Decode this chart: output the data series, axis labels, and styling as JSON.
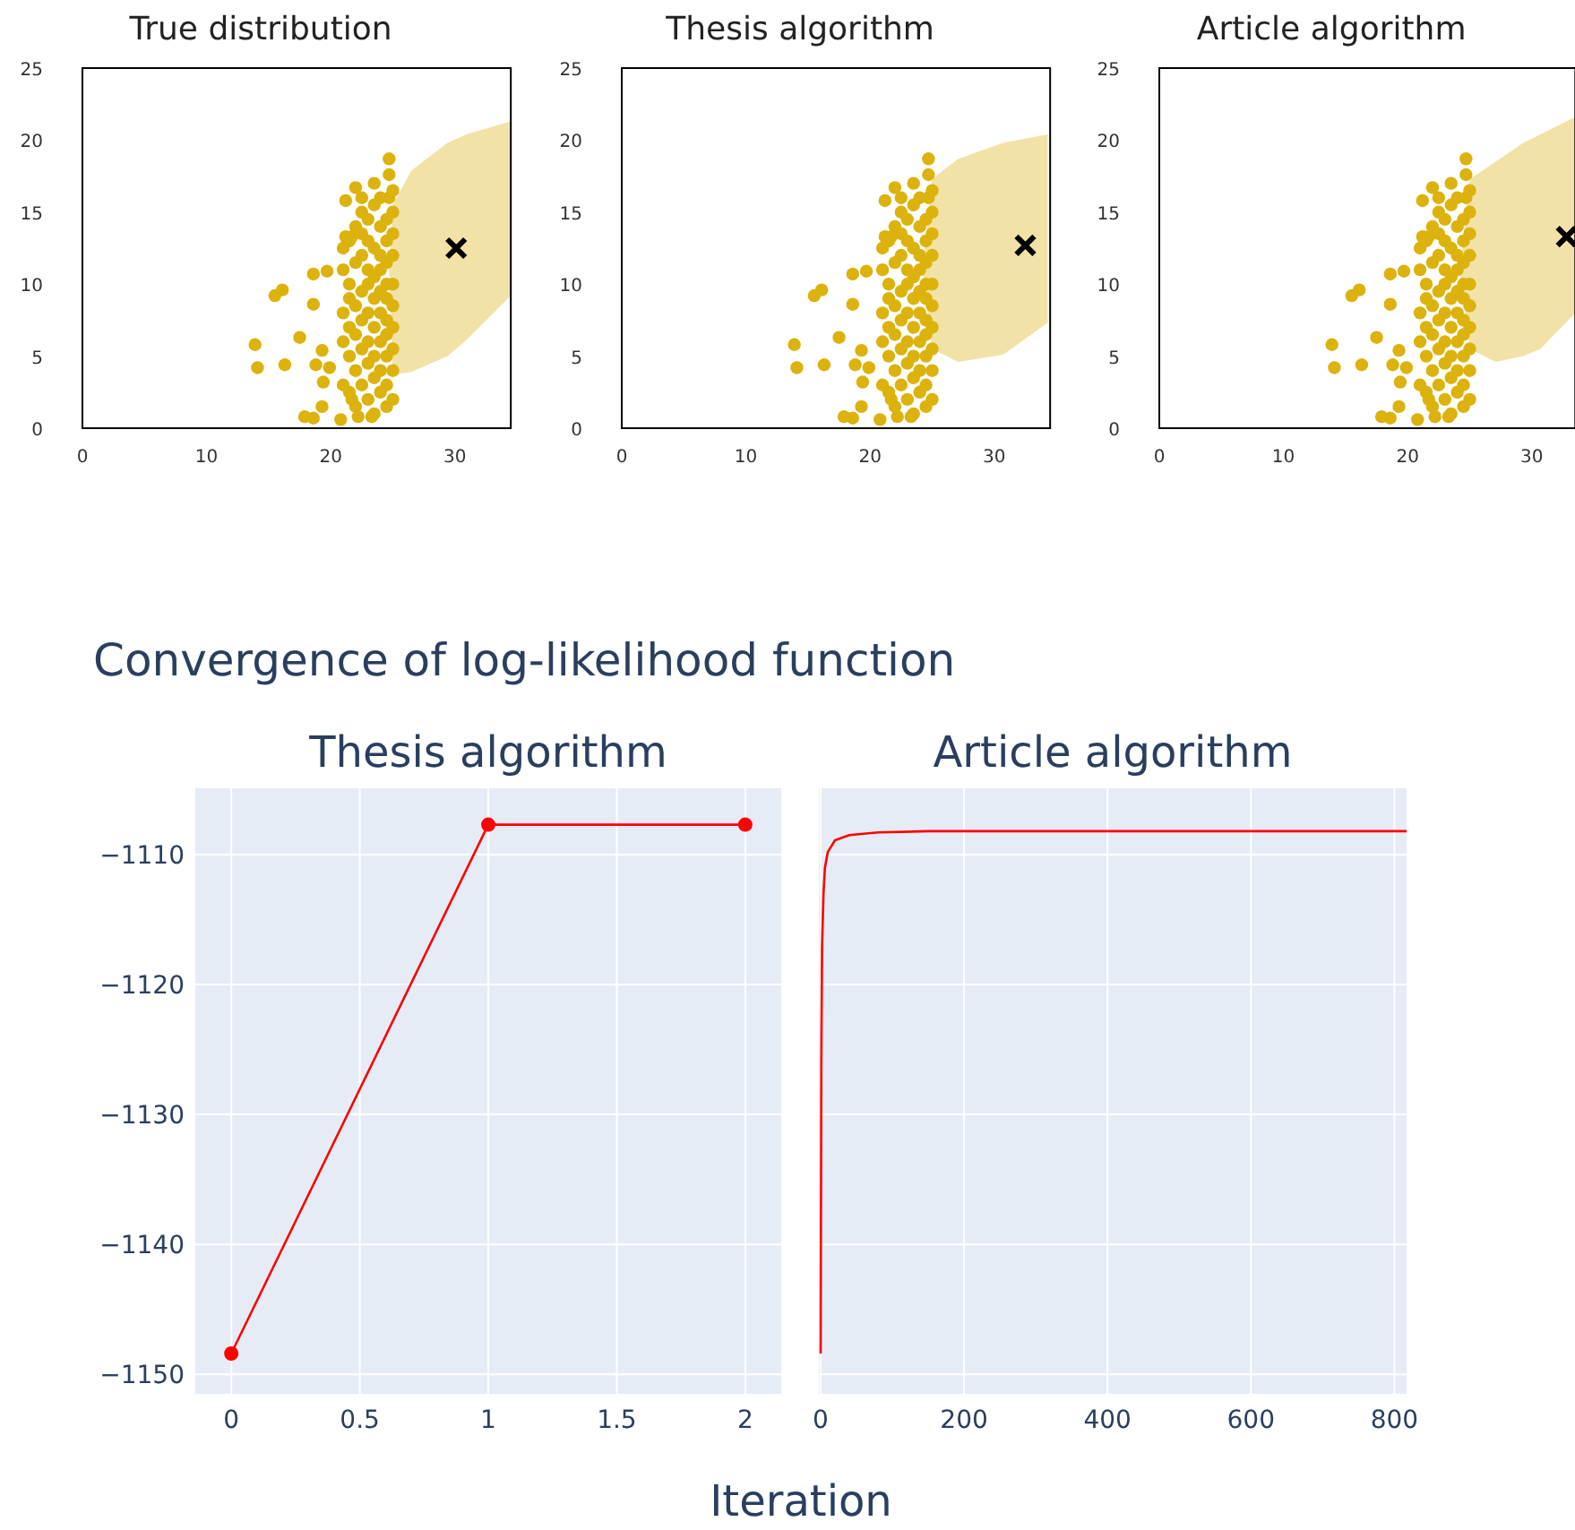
{
  "chart_data": [
    {
      "type": "scatter",
      "title": "True distribution",
      "xlim": [
        0,
        34.5
      ],
      "ylim": [
        0,
        25
      ],
      "xticks": [
        0,
        10,
        20,
        30
      ],
      "yticks": [
        0,
        5,
        10,
        15,
        20,
        25
      ],
      "grid": false,
      "series": [
        {
          "type": "area",
          "color": "#f2e2a8",
          "x": [
            24.7,
            25,
            26.5,
            29.4,
            30.9,
            34.5,
            34.5,
            30.9,
            29.4,
            26.5,
            25
          ],
          "values": [
            11,
            15.5,
            17.9,
            19.8,
            20.4,
            21.3,
            9.2,
            6.1,
            5.0,
            3.9,
            3.7
          ]
        },
        {
          "type": "scatter",
          "color": "#dcb20c",
          "marker": "circle",
          "x": [
            13.9,
            14.1,
            16.3,
            15.5,
            16.1,
            17.5,
            18.6,
            19.7,
            18.6,
            18.8,
            19.3,
            19.4,
            19.9,
            17.9,
            18.6,
            19.3,
            20.8,
            21.7,
            22.2,
            23.3,
            21.2,
            22.0,
            22.5,
            24.7,
            24.7,
            21.2,
            21.7,
            24.7,
            21,
            21,
            21,
            21,
            21,
            21.5,
            21.5,
            21.5,
            21.5,
            21.5,
            21.5,
            22,
            22,
            22,
            22,
            22,
            22,
            22.5,
            22.5,
            22.5,
            22.5,
            22.5,
            22.5,
            22.5,
            23,
            23,
            23,
            23,
            23,
            23,
            23,
            23,
            23.5,
            23.5,
            23.5,
            23.5,
            23.5,
            23.5,
            23.5,
            23.5,
            23.5,
            24,
            24,
            24,
            24,
            24,
            24,
            24,
            24,
            24,
            24.5,
            24.5,
            24.5,
            24.5,
            24.5,
            24.5,
            24.5,
            24.5,
            24.5,
            24.5,
            25,
            25,
            25,
            25,
            25,
            25,
            25,
            25,
            25,
            25
          ],
          "values": [
            5.8,
            4.2,
            4.4,
            9.2,
            9.6,
            6.3,
            10.7,
            10.9,
            8.6,
            4.4,
            5.4,
            3.2,
            4.2,
            0.8,
            0.7,
            1.5,
            0.6,
            2.0,
            0.8,
            0.8,
            15.8,
            16.7,
            16.0,
            18.7,
            17.6,
            13.3,
            13.3,
            16.0,
            3,
            6,
            8,
            11,
            12.5,
            2.5,
            5,
            7,
            9,
            10,
            13,
            1.5,
            4,
            6.5,
            8.5,
            11.5,
            14,
            3,
            5.5,
            7.5,
            9.5,
            12,
            13.5,
            15,
            2,
            4.5,
            6,
            8,
            10,
            11,
            13,
            14.5,
            1,
            3.5,
            5,
            7,
            9,
            10.5,
            12.5,
            15.5,
            17,
            2.5,
            4,
            6,
            8,
            9.5,
            11,
            12,
            14,
            16,
            1.5,
            3,
            5,
            6.5,
            7.5,
            9,
            10,
            11.5,
            13,
            14.5,
            2,
            4,
            5.5,
            7,
            8.5,
            10,
            12,
            13.5,
            15,
            16.5
          ]
        },
        {
          "type": "scatter",
          "color": "#000000",
          "marker": "cross",
          "x": [
            30.1
          ],
          "values": [
            12.5
          ]
        }
      ]
    },
    {
      "type": "scatter",
      "title": "Thesis algorithm",
      "xlim": [
        0,
        34.5
      ],
      "ylim": [
        0,
        25
      ],
      "xticks": [
        0,
        10,
        20,
        30
      ],
      "yticks": [
        0,
        5,
        10,
        15,
        20,
        25
      ],
      "grid": false,
      "series": [
        {
          "type": "area",
          "color": "#f2e2a8",
          "x": [
            24.2,
            25,
            27.1,
            30.7,
            34.3,
            34.3,
            30.7,
            27.1,
            25
          ],
          "values": [
            11.1,
            17.3,
            18.7,
            19.8,
            20.4,
            7.3,
            5.1,
            4.6,
            5.5
          ]
        },
        {
          "type": "scatter",
          "color": "#dcb20c",
          "marker": "circle",
          "x": [
            13.9,
            14.1,
            16.3,
            15.5,
            16.1,
            17.5,
            18.6,
            19.7,
            18.6,
            18.8,
            19.3,
            19.4,
            19.9,
            17.9,
            18.6,
            19.3,
            20.8,
            21.7,
            22.2,
            23.3,
            21.2,
            22.0,
            22.5,
            24.7,
            24.7,
            21.2,
            21.7,
            24.7,
            21,
            21,
            21,
            21,
            21,
            21.5,
            21.5,
            21.5,
            21.5,
            21.5,
            21.5,
            22,
            22,
            22,
            22,
            22,
            22,
            22.5,
            22.5,
            22.5,
            22.5,
            22.5,
            22.5,
            22.5,
            23,
            23,
            23,
            23,
            23,
            23,
            23,
            23,
            23.5,
            23.5,
            23.5,
            23.5,
            23.5,
            23.5,
            23.5,
            23.5,
            23.5,
            24,
            24,
            24,
            24,
            24,
            24,
            24,
            24,
            24,
            24.5,
            24.5,
            24.5,
            24.5,
            24.5,
            24.5,
            24.5,
            24.5,
            24.5,
            24.5,
            25,
            25,
            25,
            25,
            25,
            25,
            25,
            25,
            25,
            25
          ],
          "values": [
            5.8,
            4.2,
            4.4,
            9.2,
            9.6,
            6.3,
            10.7,
            10.9,
            8.6,
            4.4,
            5.4,
            3.2,
            4.2,
            0.8,
            0.7,
            1.5,
            0.6,
            2.0,
            0.8,
            0.8,
            15.8,
            16.7,
            16.0,
            18.7,
            17.6,
            13.3,
            13.3,
            16.0,
            3,
            6,
            8,
            11,
            12.5,
            2.5,
            5,
            7,
            9,
            10,
            13,
            1.5,
            4,
            6.5,
            8.5,
            11.5,
            14,
            3,
            5.5,
            7.5,
            9.5,
            12,
            13.5,
            15,
            2,
            4.5,
            6,
            8,
            10,
            11,
            13,
            14.5,
            1,
            3.5,
            5,
            7,
            9,
            10.5,
            12.5,
            15.5,
            17,
            2.5,
            4,
            6,
            8,
            9.5,
            11,
            12,
            14,
            16,
            1.5,
            3,
            5,
            6.5,
            7.5,
            9,
            10,
            11.5,
            13,
            14.5,
            2,
            4,
            5.5,
            7,
            8.5,
            10,
            12,
            13.5,
            15,
            16.5
          ]
        },
        {
          "type": "scatter",
          "color": "#000000",
          "marker": "cross",
          "x": [
            32.5
          ],
          "values": [
            12.7
          ]
        }
      ]
    },
    {
      "type": "scatter",
      "title": "Article algorithm",
      "xlim": [
        0,
        33.5
      ],
      "ylim": [
        0,
        25
      ],
      "xticks": [
        0,
        10,
        20,
        30
      ],
      "yticks": [
        0,
        5,
        10,
        15,
        20,
        25
      ],
      "grid": false,
      "series": [
        {
          "type": "area",
          "color": "#f2e2a8",
          "x": [
            24.2,
            25,
            27.1,
            29.3,
            30.7,
            33.5,
            33.5,
            30.7,
            29.3,
            27.1,
            25
          ],
          "values": [
            11.1,
            17.3,
            18.5,
            19.8,
            20.4,
            21.6,
            8.0,
            5.5,
            5.0,
            4.6,
            5.5
          ]
        },
        {
          "type": "scatter",
          "color": "#dcb20c",
          "marker": "circle",
          "x": [
            13.9,
            14.1,
            16.3,
            15.5,
            16.1,
            17.5,
            18.6,
            19.7,
            18.6,
            18.8,
            19.3,
            19.4,
            19.9,
            17.9,
            18.6,
            19.3,
            20.8,
            21.7,
            22.2,
            23.3,
            21.2,
            22.0,
            22.5,
            24.7,
            24.7,
            21.2,
            21.7,
            24.7,
            21,
            21,
            21,
            21,
            21,
            21.5,
            21.5,
            21.5,
            21.5,
            21.5,
            21.5,
            22,
            22,
            22,
            22,
            22,
            22,
            22.5,
            22.5,
            22.5,
            22.5,
            22.5,
            22.5,
            22.5,
            23,
            23,
            23,
            23,
            23,
            23,
            23,
            23,
            23.5,
            23.5,
            23.5,
            23.5,
            23.5,
            23.5,
            23.5,
            23.5,
            23.5,
            24,
            24,
            24,
            24,
            24,
            24,
            24,
            24,
            24,
            24.5,
            24.5,
            24.5,
            24.5,
            24.5,
            24.5,
            24.5,
            24.5,
            24.5,
            24.5,
            25,
            25,
            25,
            25,
            25,
            25,
            25,
            25,
            25,
            25
          ],
          "values": [
            5.8,
            4.2,
            4.4,
            9.2,
            9.6,
            6.3,
            10.7,
            10.9,
            8.6,
            4.4,
            5.4,
            3.2,
            4.2,
            0.8,
            0.7,
            1.5,
            0.6,
            2.0,
            0.8,
            0.8,
            15.8,
            16.7,
            16.0,
            18.7,
            17.6,
            13.3,
            13.3,
            16.0,
            3,
            6,
            8,
            11,
            12.5,
            2.5,
            5,
            7,
            9,
            10,
            13,
            1.5,
            4,
            6.5,
            8.5,
            11.5,
            14,
            3,
            5.5,
            7.5,
            9.5,
            12,
            13.5,
            15,
            2,
            4.5,
            6,
            8,
            10,
            11,
            13,
            14.5,
            1,
            3.5,
            5,
            7,
            9,
            10.5,
            12.5,
            15.5,
            17,
            2.5,
            4,
            6,
            8,
            9.5,
            11,
            12,
            14,
            16,
            1.5,
            3,
            5,
            6.5,
            7.5,
            9,
            10,
            11.5,
            13,
            14.5,
            2,
            4,
            5.5,
            7,
            8.5,
            10,
            12,
            13.5,
            15,
            16.5
          ]
        },
        {
          "type": "scatter",
          "color": "#000000",
          "marker": "cross",
          "x": [
            32.8
          ],
          "values": [
            13.3
          ]
        }
      ]
    },
    {
      "type": "line",
      "title": "Thesis algorithm",
      "xlabel": "Iteration",
      "annotations": [
        "Convergence of log-likelihood function"
      ],
      "x": [
        0,
        1,
        2
      ],
      "values": [
        -1148.4,
        -1107.7,
        -1107.7
      ],
      "color": "#ff0000",
      "marker": "circle",
      "grid": true,
      "xlim": [
        -0.14,
        2.14
      ],
      "ylim": [
        -1151.5,
        -1104.9
      ],
      "xticks": [
        0,
        0.5,
        1,
        1.5,
        2
      ],
      "yticks": [
        {
          "value": -1150,
          "label": "−1150"
        },
        {
          "value": -1140,
          "label": "−1140"
        },
        {
          "value": -1130,
          "label": "−1130"
        },
        {
          "value": -1120,
          "label": "−1120"
        },
        {
          "value": -1110,
          "label": "−1110"
        }
      ]
    },
    {
      "type": "line",
      "title": "Article algorithm",
      "x": [
        0,
        1,
        2,
        4,
        6,
        10,
        20,
        40,
        80,
        150,
        300,
        817
      ],
      "values": [
        -1148.4,
        -1125,
        -1117,
        -1113,
        -1111,
        -1109.8,
        -1108.9,
        -1108.5,
        -1108.3,
        -1108.2,
        -1108.2,
        -1108.2
      ],
      "color": "#ff0000",
      "grid": true,
      "tick_labels": "x",
      "xlim": [
        -2.5,
        817
      ],
      "ylim": [
        -1151.5,
        -1104.9
      ],
      "xticks": [
        0,
        200,
        400,
        600,
        800
      ],
      "yticks": [
        {
          "value": -1150,
          "label": null
        },
        {
          "value": -1140,
          "label": null
        },
        {
          "value": -1130,
          "label": null
        },
        {
          "value": -1120,
          "label": null
        },
        {
          "value": -1110,
          "label": null
        }
      ]
    }
  ]
}
